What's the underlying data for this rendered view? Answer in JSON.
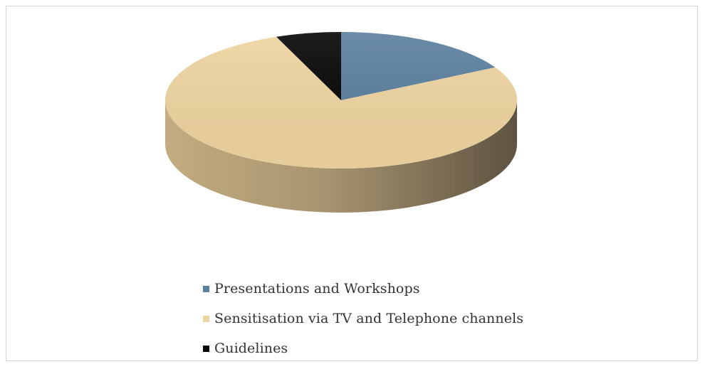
{
  "chart_data": {
    "type": "pie",
    "title": "",
    "categories": [
      "Presentations and Workshops",
      "Sensitisation via TV and Telephone channels",
      "Guidelines"
    ],
    "values": [
      17,
      77,
      6
    ],
    "colors": [
      "#5b7f9e",
      "#efd4a0",
      "#050505"
    ],
    "legend_position": "bottom"
  }
}
